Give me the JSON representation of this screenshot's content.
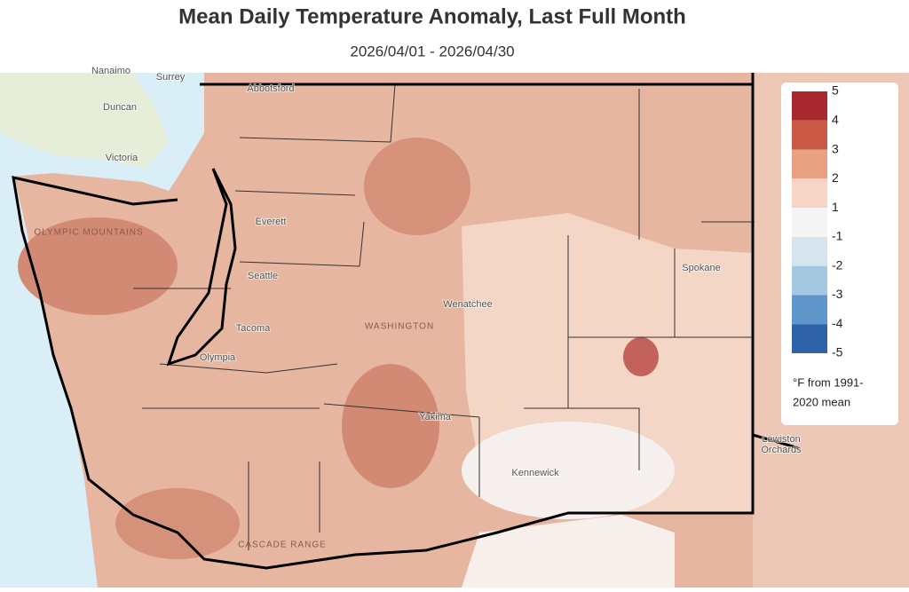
{
  "header": {
    "title": "Mean Daily Temperature Anomaly, Last Full Month",
    "subtitle": "2026/04/01 - 2026/04/30"
  },
  "legend": {
    "labels": [
      5,
      4,
      3,
      2,
      1,
      -1,
      -2,
      -3,
      -4,
      -5
    ],
    "colors": [
      "#a9272f",
      "#c95b46",
      "#e8a283",
      "#f7d5c4",
      "#f5f5f5",
      "#d5e4ef",
      "#a3c8e0",
      "#5e96cb",
      "#2e63a8"
    ],
    "note": [
      "°F from 1991-",
      "2020 mean"
    ]
  },
  "map": {
    "places": [
      "Nanaimo",
      "Surrey",
      "Duncan",
      "Victoria",
      "Abbotsford",
      "Everett",
      "Seattle",
      "Tacoma",
      "Olympia",
      "Wenatchee",
      "Spokane",
      "Yakima",
      "Kennewick",
      "Lewiston",
      "Orchards",
      "WASHINGTON",
      "OLYMPIC MOUNTAINS",
      "CASCADE RANGE"
    ]
  }
}
